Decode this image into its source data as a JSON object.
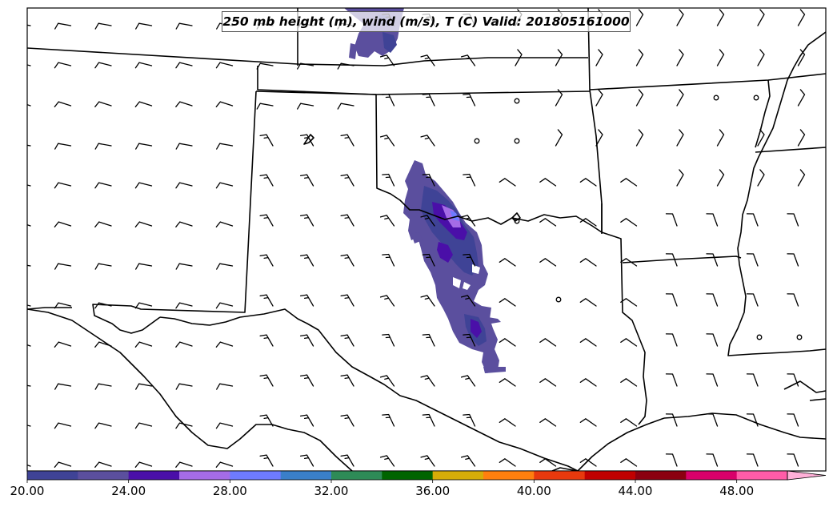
{
  "map": {
    "title": "250 mb height (m), wind (m/s), T (C) Valid: 201805161000",
    "region": "Southern Plains (Oklahoma, Texas, Kansas, Arkansas, Louisiana)"
  },
  "colorbar": {
    "tick_labels": [
      "20.00",
      "24.00",
      "28.00",
      "32.00",
      "36.00",
      "40.00",
      "44.00",
      "48.00"
    ],
    "colors": [
      "#3f4396",
      "#5b4f9e",
      "#4a0fa8",
      "#a56ce6",
      "#6e7bff",
      "#3a7fc9",
      "#2e8b57",
      "#006400",
      "#d6ac08",
      "#ff7f0e",
      "#e8390d",
      "#c00000",
      "#8b0010",
      "#d8006a",
      "#ff5ca8",
      "#ffb0d8"
    ],
    "extend": "max"
  },
  "wind_barb_icon": "wind-barb-icon",
  "calm_icon": "calm-circle-icon"
}
